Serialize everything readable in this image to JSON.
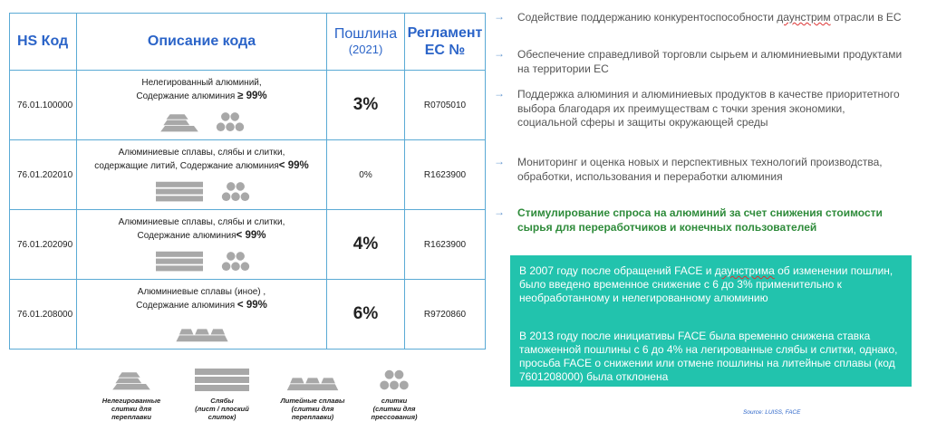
{
  "table": {
    "headers": {
      "code": "HS Код",
      "description": "Описание кода",
      "duty": "Пошлина",
      "duty_year": "(2021)",
      "regulation_line1": "Регламент",
      "regulation_line2": "ЕС №"
    },
    "rows": [
      {
        "code": "76.01.100000",
        "desc_line1": "Нелегированный алюминий,",
        "desc_line2": "Содержание алюминия",
        "desc_value": "≥ 99%",
        "duty": "3%",
        "regulation": "R0705010",
        "icons": [
          "ingots",
          "pellets"
        ]
      },
      {
        "code": "76.01.202010",
        "desc_line1": "Алюминиевые сплавы, слябы и слитки,",
        "desc_line2": "содержащие литий, Содержание алюминия",
        "desc_value": "< 99%",
        "duty": "0%",
        "regulation": "R1623900",
        "icons": [
          "slabs",
          "pellets"
        ]
      },
      {
        "code": "76.01.202090",
        "desc_line1": "Алюминиевые сплавы, слябы и слитки,",
        "desc_line2": "Содержание алюминия",
        "desc_value": "< 99%",
        "duty": "4%",
        "regulation": "R1623900",
        "icons": [
          "slabs",
          "pellets"
        ]
      },
      {
        "code": "76.01.208000",
        "desc_line1": "Алюминиевые сплавы (иное) ,",
        "desc_line2": "Содержание алюминия",
        "desc_value": "< 99%",
        "duty": "6%",
        "regulation": "R9720860",
        "icons": [
          "cast-ingots"
        ]
      }
    ]
  },
  "legend": [
    {
      "icon": "ingots",
      "caption": "Нелегированные\nслитки для\nпереплавки"
    },
    {
      "icon": "slabs",
      "caption": "Слябы\n(лист / плоский\nслиток)"
    },
    {
      "icon": "cast-ingots",
      "caption": "Литейные сплавы\n(слитки для\nпереплавки)"
    },
    {
      "icon": "pellets",
      "caption": "слитки\n(слитки для\nпрессования)"
    }
  ],
  "bullets": [
    {
      "text_before": "Содействие поддержанию конкурентоспособности ",
      "text_marked": "даунстрим",
      "text_after": " отрасли в ЕС"
    },
    {
      "text_before": "Обеспечение справедливой торговли сырьем и алюминиевыми продуктами на территории ЕС",
      "text_marked": "",
      "text_after": ""
    },
    {
      "text_before": "Поддержка алюминия и алюминиевых продуктов в качестве приоритетного выбора благодаря их преимуществам с точки зрения экономики, социальной сферы и защиты окружающей среды",
      "text_marked": "",
      "text_after": ""
    },
    {
      "text_before": "Мониторинг и оценка новых и перспективных технологий производства, обработки, использования и переработки алюминия",
      "text_marked": "",
      "text_after": ""
    },
    {
      "text_before": "Стимулирование спроса на алюминий за счет снижения стоимости сырья для переработчиков и конечных пользователей",
      "text_marked": "",
      "text_after": ""
    }
  ],
  "box": {
    "p1_before": "В 2007 году после обращений FACE и ",
    "p1_marked": "даунстрима",
    "p1_after": " об изменении пошлин, было введено временное снижение с 6 до 3% применительно к необработанному и нелегированному алюминию",
    "p2": "В 2013 году после инициативы FACE была временно снижена ставка таможенной пошлины с 6 до 4% на легированные слябы и слитки, однако, просьба FACE о снижении или отмене пошлины на литейные сплавы (код 7601208000) была отклонена"
  },
  "source": "Source: LUISS, FACE",
  "colors": {
    "header_blue": "#2b64c8",
    "border": "#5aaad5",
    "green_text": "#2e8b3a",
    "box_teal": "#22c3ad",
    "icon_gray": "#a8a8a8"
  }
}
